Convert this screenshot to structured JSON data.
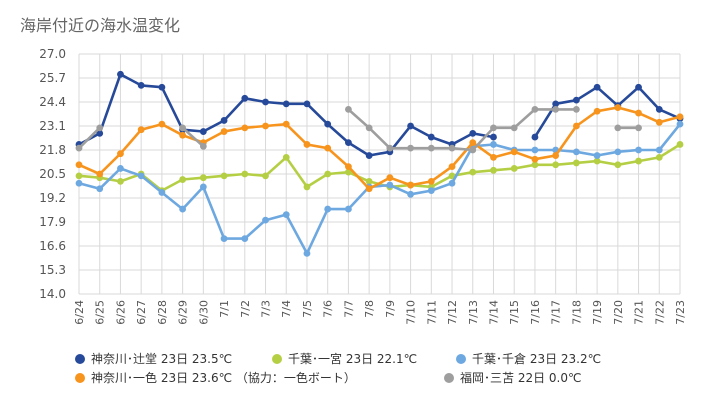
{
  "chart_data": {
    "type": "line",
    "title": "海岸付近の海水温変化",
    "xlabel": "",
    "ylabel": "",
    "ylim": [
      14.0,
      27.0
    ],
    "yticks": [
      "14.0",
      "15.3",
      "16.6",
      "17.9",
      "19.2",
      "20.5",
      "21.8",
      "23.1",
      "24.4",
      "25.7",
      "27.0"
    ],
    "grid": true,
    "legend_position": "bottom",
    "categories": [
      "6/24",
      "6/25",
      "6/26",
      "6/27",
      "6/28",
      "6/29",
      "6/30",
      "7/1",
      "7/2",
      "7/3",
      "7/4",
      "7/5",
      "7/6",
      "7/7",
      "7/8",
      "7/9",
      "7/10",
      "7/11",
      "7/12",
      "7/13",
      "7/14",
      "7/15",
      "7/16",
      "7/17",
      "7/18",
      "7/19",
      "7/20",
      "7/21",
      "7/22",
      "7/23"
    ],
    "series": [
      {
        "name": "神奈川･辻堂 23日 23.5℃",
        "color": "#264a99",
        "values": [
          22.1,
          22.7,
          25.9,
          25.3,
          25.2,
          22.9,
          22.8,
          23.4,
          24.6,
          24.4,
          24.3,
          24.3,
          23.2,
          22.2,
          21.5,
          21.7,
          23.1,
          22.5,
          22.1,
          22.7,
          22.5,
          null,
          22.5,
          24.3,
          24.5,
          25.2,
          24.2,
          25.2,
          24.0,
          23.5
        ]
      },
      {
        "name": "千葉･一宮 23日 22.1℃",
        "color": "#b5cf45",
        "values": [
          20.4,
          20.3,
          20.1,
          20.5,
          19.6,
          20.2,
          20.3,
          20.4,
          20.5,
          20.4,
          21.4,
          19.8,
          20.5,
          20.6,
          20.1,
          19.8,
          19.9,
          19.8,
          20.4,
          20.6,
          20.7,
          20.8,
          21.0,
          21.0,
          21.1,
          21.2,
          21.0,
          21.2,
          21.4,
          22.1
        ]
      },
      {
        "name": "千葉･千倉 23日 23.2℃",
        "color": "#6ea8e0",
        "values": [
          20.0,
          19.7,
          20.8,
          20.4,
          19.5,
          18.6,
          19.8,
          17.0,
          17.0,
          18.0,
          18.3,
          16.2,
          18.6,
          18.6,
          19.8,
          19.9,
          19.4,
          19.6,
          20.0,
          22.0,
          22.1,
          21.8,
          21.8,
          21.8,
          21.7,
          21.5,
          21.7,
          21.8,
          21.8,
          23.2
        ]
      },
      {
        "name": "神奈川･一色 23日 23.6℃ （協力：一色ボート）",
        "color": "#f7941d",
        "values": [
          21.0,
          20.5,
          21.6,
          22.9,
          23.2,
          22.6,
          22.2,
          22.8,
          23.0,
          23.1,
          23.2,
          22.1,
          21.9,
          20.9,
          19.7,
          20.3,
          19.9,
          20.1,
          20.9,
          22.2,
          21.4,
          21.7,
          21.3,
          21.5,
          23.1,
          23.9,
          24.1,
          23.8,
          23.3,
          23.6
        ]
      },
      {
        "name": "福岡･三苫 22日 0.0℃",
        "color": "#9e9e9e",
        "values": [
          21.9,
          23.0,
          null,
          null,
          null,
          23.0,
          22.0,
          null,
          null,
          null,
          null,
          null,
          null,
          24.0,
          23.0,
          21.9,
          21.9,
          21.9,
          21.9,
          21.8,
          23.0,
          23.0,
          24.0,
          24.0,
          24.0,
          null,
          23.0,
          23.0,
          null,
          null
        ]
      }
    ]
  }
}
